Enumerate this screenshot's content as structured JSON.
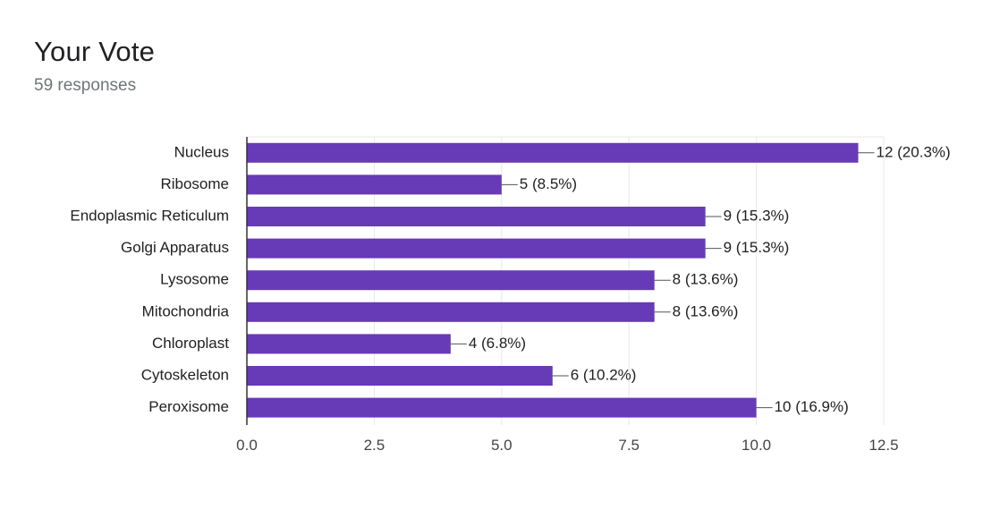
{
  "header": {
    "title": "Your Vote",
    "subtitle": "59 responses"
  },
  "colors": {
    "bar": "#673ab7",
    "grid": "#e8e8e8",
    "axis": "#333333",
    "leader": "#555555"
  },
  "chart_data": {
    "type": "bar",
    "orientation": "horizontal",
    "categories": [
      "Nucleus",
      "Ribosome",
      "Endoplasmic Reticulum",
      "Golgi Apparatus",
      "Lysosome",
      "Mitochondria",
      "Chloroplast",
      "Cytoskeleton",
      "Peroxisome"
    ],
    "values": [
      12,
      5,
      9,
      9,
      8,
      8,
      4,
      6,
      10
    ],
    "data_labels": [
      "12 (20.3%)",
      "5 (8.5%)",
      "9 (15.3%)",
      "9 (15.3%)",
      "8 (13.6%)",
      "8 (13.6%)",
      "4 (6.8%)",
      "6 (10.2%)",
      "10 (16.9%)"
    ],
    "xlim": [
      0,
      12.5
    ],
    "xticks": [
      0,
      2.5,
      5,
      7.5,
      10,
      12.5
    ],
    "xtick_labels": [
      "0.0",
      "2.5",
      "5.0",
      "7.5",
      "10.0",
      "12.5"
    ],
    "grid": true
  }
}
